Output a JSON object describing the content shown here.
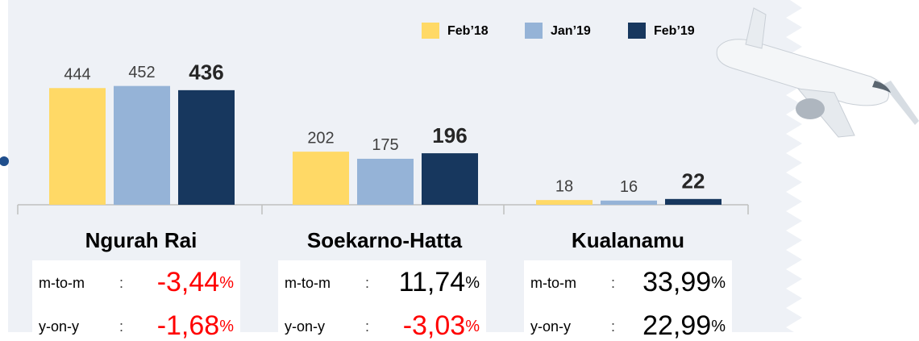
{
  "chart_data": {
    "type": "bar",
    "categories": [
      "Ngurah Rai",
      "Soekarno-Hatta",
      "Kualanamu"
    ],
    "series": [
      {
        "name": "Feb’18",
        "color": "#ffd966",
        "values": [
          444,
          202,
          18
        ]
      },
      {
        "name": "Jan’19",
        "color": "#95b3d7",
        "values": [
          452,
          175,
          16
        ]
      },
      {
        "name": "Feb’19",
        "color": "#17375e",
        "values": [
          436,
          196,
          22
        ]
      }
    ],
    "ylim": [
      0,
      500
    ],
    "grid": false,
    "legend": "top-right"
  },
  "stats": {
    "separator": ":",
    "unit": "%",
    "groups": [
      [
        {
          "label": "m-to-m",
          "value": "-3,44",
          "color": "#ff0000"
        },
        {
          "label": "y-on-y",
          "value": "-1,68",
          "color": "#ff0000"
        }
      ],
      [
        {
          "label": "m-to-m",
          "value": "11,74",
          "color": "#000000"
        },
        {
          "label": "y-on-y",
          "value": "-3,03",
          "color": "#ff0000"
        }
      ],
      [
        {
          "label": "m-to-m",
          "value": "33,99",
          "color": "#000000"
        },
        {
          "label": "y-on-y",
          "value": "22,99",
          "color": "#000000"
        }
      ]
    ]
  }
}
